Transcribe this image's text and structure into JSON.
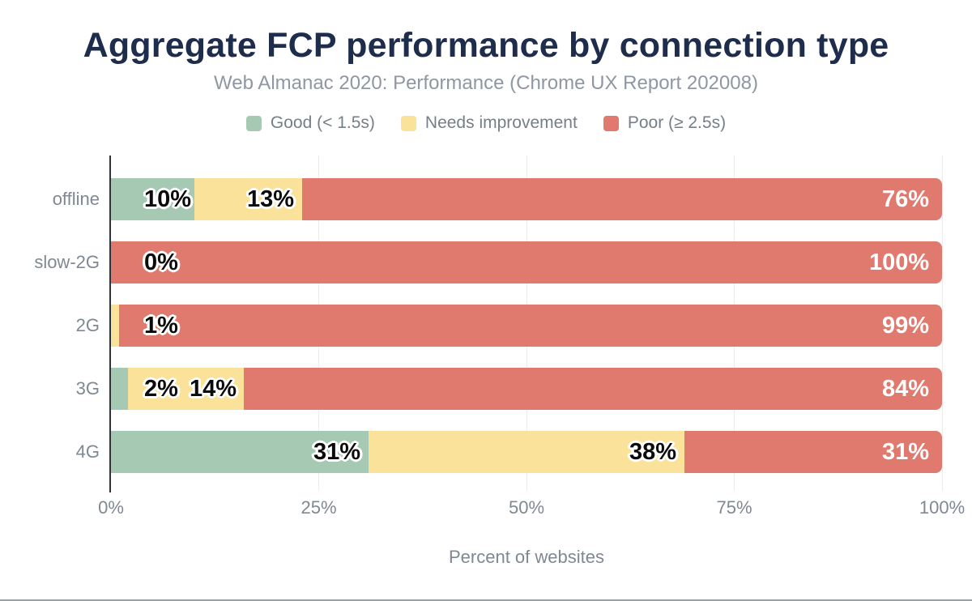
{
  "header": {
    "title": "Aggregate FCP performance by connection type",
    "subtitle": "Web Almanac 2020: Performance (Chrome UX Report 202008)"
  },
  "legend": [
    {
      "label": "Good (< 1.5s)",
      "color": "#a6c9b4"
    },
    {
      "label": "Needs improvement",
      "color": "#fbe29a"
    },
    {
      "label": "Poor (≥ 2.5s)",
      "color": "#e0796e"
    }
  ],
  "chart_data": {
    "type": "bar",
    "orientation": "horizontal",
    "stacked": true,
    "unit": "percent",
    "title": "Aggregate FCP performance by connection type",
    "subtitle": "Web Almanac 2020: Performance (Chrome UX Report 202008)",
    "categories": [
      "offline",
      "slow-2G",
      "2G",
      "3G",
      "4G"
    ],
    "series": [
      {
        "name": "Good (< 1.5s)",
        "color": "#a6c9b4",
        "values": [
          10,
          0,
          0,
          2,
          31
        ]
      },
      {
        "name": "Needs improvement",
        "color": "#fbe29a",
        "values": [
          13,
          0,
          1,
          14,
          38
        ]
      },
      {
        "name": "Poor (≥ 2.5s)",
        "color": "#e0796e",
        "values": [
          76,
          100,
          99,
          84,
          31
        ]
      }
    ],
    "inside_labels": [
      [
        {
          "text": "10%",
          "series": 0
        },
        {
          "text": "13%",
          "series": 1
        }
      ],
      [
        {
          "text": "0%",
          "series": 0
        }
      ],
      [
        {
          "text": "1%",
          "series": 1
        }
      ],
      [
        {
          "text": "2%",
          "series": 0
        },
        {
          "text": "14%",
          "series": 1
        }
      ],
      [
        {
          "text": "31%",
          "series": 0
        },
        {
          "text": "38%",
          "series": 1
        }
      ]
    ],
    "end_labels": [
      "76%",
      "100%",
      "99%",
      "84%",
      "31%"
    ],
    "x_ticks": [
      "0%",
      "25%",
      "50%",
      "75%",
      "100%"
    ],
    "xlim": [
      0,
      100
    ],
    "xlabel": "Percent of websites",
    "grid": "vertical",
    "legend_position": "top"
  },
  "colors": {
    "title": "#1f2d4d",
    "subtitle": "#8f97a3",
    "axis_text": "#7f8893",
    "axis_line": "#2e3338",
    "gridline": "#ececec",
    "background": "#ffffff",
    "bottom_border": "#9aa0a6"
  }
}
